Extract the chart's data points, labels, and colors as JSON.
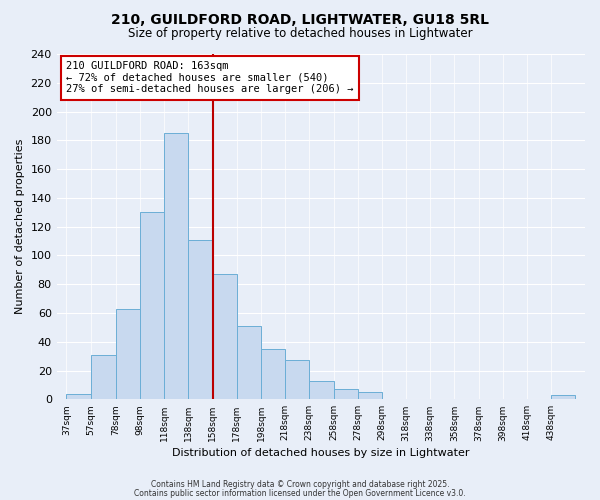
{
  "title1": "210, GUILDFORD ROAD, LIGHTWATER, GU18 5RL",
  "title2": "Size of property relative to detached houses in Lightwater",
  "xlabel": "Distribution of detached houses by size in Lightwater",
  "ylabel": "Number of detached properties",
  "bar_labels": [
    "37sqm",
    "57sqm",
    "78sqm",
    "98sqm",
    "118sqm",
    "138sqm",
    "158sqm",
    "178sqm",
    "198sqm",
    "218sqm",
    "238sqm",
    "258sqm",
    "278sqm",
    "298sqm",
    "318sqm",
    "338sqm",
    "358sqm",
    "378sqm",
    "398sqm",
    "418sqm",
    "438sqm"
  ],
  "bar_values": [
    4,
    31,
    63,
    130,
    185,
    111,
    87,
    51,
    35,
    27,
    13,
    7,
    5,
    0,
    0,
    0,
    0,
    0,
    0,
    0,
    3
  ],
  "bar_color": "#c8d9ef",
  "bar_edge_color": "#6baed6",
  "vline_x": 158,
  "vline_color": "#bb0000",
  "annotation_title": "210 GUILDFORD ROAD: 163sqm",
  "annotation_line1": "← 72% of detached houses are smaller (540)",
  "annotation_line2": "27% of semi-detached houses are larger (206) →",
  "annotation_box_facecolor": "#ffffff",
  "annotation_box_edgecolor": "#cc0000",
  "ylim": [
    0,
    240
  ],
  "yticks": [
    0,
    20,
    40,
    60,
    80,
    100,
    120,
    140,
    160,
    180,
    200,
    220,
    240
  ],
  "background_color": "#e8eef8",
  "grid_color": "#ffffff",
  "footer1": "Contains HM Land Registry data © Crown copyright and database right 2025.",
  "footer2": "Contains public sector information licensed under the Open Government Licence v3.0."
}
